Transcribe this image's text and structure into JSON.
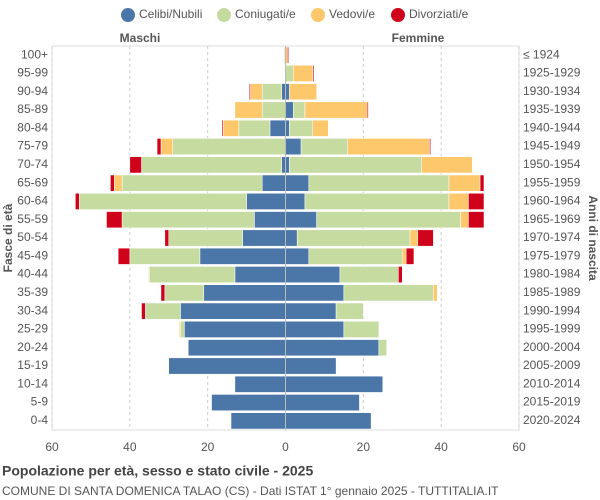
{
  "chart_data": {
    "type": "pyramid",
    "title": "Popolazione per età, sesso e stato civile - 2025",
    "subtitle": "COMUNE DI SANTA DOMENICA TALAO (CS) - Dati ISTAT 1° gennaio 2025 - TUTTITALIA.IT",
    "left_label": "Maschi",
    "right_label": "Femmine",
    "y_axis_label": "Fasce di età",
    "y2_axis_label": "Anni di nascita",
    "categories": [
      "100+",
      "95-99",
      "90-94",
      "85-89",
      "80-84",
      "75-79",
      "70-74",
      "65-69",
      "60-64",
      "55-59",
      "50-54",
      "45-49",
      "40-44",
      "35-39",
      "30-34",
      "25-29",
      "20-24",
      "15-19",
      "10-14",
      "5-9",
      "0-4"
    ],
    "birth_years": [
      "≤ 1924",
      "1925-1929",
      "1930-1934",
      "1935-1939",
      "1940-1944",
      "1945-1949",
      "1950-1954",
      "1955-1959",
      "1960-1964",
      "1965-1969",
      "1970-1974",
      "1975-1979",
      "1980-1984",
      "1985-1989",
      "1990-1994",
      "1995-1999",
      "2000-2004",
      "2005-2009",
      "2010-2014",
      "2015-2019",
      "2020-2024"
    ],
    "xlim": [
      -60,
      60
    ],
    "xticks": [
      {
        "value": -60,
        "label": "60"
      },
      {
        "value": -40,
        "label": "40"
      },
      {
        "value": -20,
        "label": "20"
      },
      0,
      20,
      40,
      60
    ],
    "grid": true,
    "series": [
      {
        "name": "Celibi/Nubili",
        "color": "#4a76a8",
        "male": [
          0,
          0,
          1,
          0,
          4,
          0,
          1,
          6,
          10,
          8,
          11,
          22,
          13,
          21,
          27,
          26,
          25,
          30,
          13,
          19,
          14
        ],
        "female": [
          0,
          0,
          1,
          2,
          1,
          4,
          1,
          6,
          5,
          8,
          3,
          6,
          14,
          15,
          13,
          15,
          24,
          13,
          25,
          19,
          22
        ]
      },
      {
        "name": "Coniugati/e",
        "color": "#c5dba0",
        "male": [
          0,
          0,
          5,
          6,
          8,
          29,
          36,
          36,
          43,
          34,
          19,
          18,
          22,
          10,
          9,
          1,
          0,
          0,
          0,
          0,
          0
        ],
        "female": [
          0,
          2,
          0,
          3,
          6,
          12,
          34,
          36,
          37,
          37,
          29,
          24,
          15,
          23,
          7,
          9,
          2,
          0,
          0,
          0,
          0
        ]
      },
      {
        "name": "Vedovi/e",
        "color": "#fdc86b",
        "male": [
          0.3,
          0,
          3,
          7,
          4,
          3,
          0,
          2,
          0,
          0,
          0,
          0,
          0.2,
          0,
          0,
          0.3,
          0,
          0,
          0,
          0,
          0
        ],
        "female": [
          0.5,
          5,
          7,
          16,
          4,
          21,
          13,
          8,
          5,
          2,
          2,
          1,
          0,
          1,
          0,
          0,
          0,
          0,
          0,
          0,
          0
        ]
      },
      {
        "name": "Divorziati/e",
        "color": "#d0021b",
        "male": [
          0,
          0,
          0.3,
          0,
          0.3,
          1,
          3,
          1,
          1,
          4,
          1,
          3,
          0,
          1,
          1,
          0,
          0,
          0,
          0,
          0,
          0
        ],
        "female": [
          0.3,
          0.3,
          0,
          0.3,
          0,
          0.3,
          0,
          1,
          4,
          4,
          4,
          2,
          1,
          0,
          0,
          0,
          0,
          0,
          0,
          0,
          0
        ]
      }
    ]
  }
}
